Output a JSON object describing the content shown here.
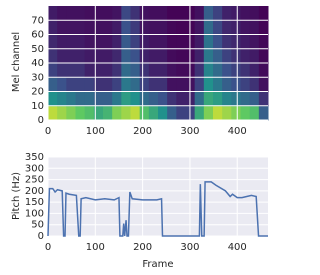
{
  "chart_data": [
    {
      "type": "heatmap",
      "ylabel": "Mel channel",
      "colormap": "viridis",
      "grid": true,
      "xlim": [
        0,
        465
      ],
      "ylim": [
        0,
        80
      ],
      "xticks": [
        0,
        100,
        200,
        300,
        400
      ],
      "yticks": [
        0,
        10,
        20,
        30,
        40,
        50,
        60,
        70
      ],
      "values": [
        [
          0.9,
          0.85,
          0.8,
          0.75,
          0.7,
          0.6,
          0.65,
          0.8,
          0.85,
          0.9,
          0.7,
          0.6,
          0.5,
          0.3,
          0.2,
          0.2,
          0.6,
          0.8,
          0.9,
          0.85,
          0.8,
          0.75,
          0.7,
          0.3
        ],
        [
          0.5,
          0.45,
          0.4,
          0.35,
          0.35,
          0.3,
          0.3,
          0.4,
          0.55,
          0.5,
          0.35,
          0.3,
          0.25,
          0.15,
          0.1,
          0.1,
          0.35,
          0.6,
          0.55,
          0.45,
          0.4,
          0.35,
          0.3,
          0.15
        ],
        [
          0.3,
          0.25,
          0.2,
          0.2,
          0.2,
          0.15,
          0.15,
          0.2,
          0.4,
          0.35,
          0.2,
          0.15,
          0.15,
          0.05,
          0.05,
          0.05,
          0.2,
          0.5,
          0.4,
          0.3,
          0.25,
          0.2,
          0.15,
          0.05
        ],
        [
          0.2,
          0.15,
          0.15,
          0.15,
          0.1,
          0.1,
          0.1,
          0.15,
          0.35,
          0.3,
          0.15,
          0.1,
          0.1,
          0.05,
          0.03,
          0.03,
          0.15,
          0.45,
          0.35,
          0.25,
          0.2,
          0.15,
          0.1,
          0.03
        ],
        [
          0.15,
          0.1,
          0.1,
          0.1,
          0.08,
          0.08,
          0.08,
          0.12,
          0.3,
          0.25,
          0.1,
          0.08,
          0.08,
          0.03,
          0.02,
          0.02,
          0.1,
          0.4,
          0.3,
          0.2,
          0.15,
          0.1,
          0.08,
          0.02
        ],
        [
          0.12,
          0.08,
          0.08,
          0.08,
          0.06,
          0.06,
          0.06,
          0.1,
          0.28,
          0.2,
          0.08,
          0.06,
          0.06,
          0.02,
          0.02,
          0.02,
          0.08,
          0.38,
          0.25,
          0.15,
          0.12,
          0.08,
          0.06,
          0.02
        ],
        [
          0.1,
          0.06,
          0.06,
          0.06,
          0.05,
          0.05,
          0.05,
          0.08,
          0.25,
          0.18,
          0.06,
          0.05,
          0.05,
          0.02,
          0.01,
          0.01,
          0.06,
          0.35,
          0.22,
          0.12,
          0.1,
          0.06,
          0.05,
          0.01
        ],
        [
          0.08,
          0.05,
          0.05,
          0.05,
          0.04,
          0.04,
          0.04,
          0.06,
          0.22,
          0.15,
          0.05,
          0.04,
          0.04,
          0.01,
          0.01,
          0.01,
          0.05,
          0.3,
          0.2,
          0.1,
          0.08,
          0.05,
          0.04,
          0.01
        ]
      ]
    },
    {
      "type": "line",
      "xlabel": "Frame",
      "ylabel": "Pitch (Hz)",
      "color": "#4c72b0",
      "grid": true,
      "xlim": [
        0,
        465
      ],
      "ylim": [
        0,
        350
      ],
      "xticks": [
        0,
        100,
        200,
        300,
        400
      ],
      "yticks": [
        0,
        50,
        100,
        150,
        200,
        250,
        300,
        350
      ],
      "x": [
        0,
        3,
        10,
        15,
        20,
        30,
        33,
        36,
        38,
        45,
        60,
        65,
        68,
        70,
        80,
        100,
        120,
        140,
        150,
        152,
        158,
        160,
        162,
        165,
        167,
        170,
        173,
        178,
        200,
        230,
        240,
        242,
        320,
        322,
        325,
        330,
        332,
        345,
        355,
        375,
        385,
        390,
        400,
        410,
        420,
        430,
        440,
        445,
        465
      ],
      "values": [
        0,
        210,
        210,
        195,
        205,
        200,
        0,
        0,
        190,
        185,
        180,
        0,
        0,
        165,
        170,
        160,
        165,
        160,
        170,
        0,
        0,
        55,
        0,
        70,
        0,
        0,
        195,
        165,
        160,
        160,
        165,
        0,
        0,
        230,
        0,
        0,
        240,
        240,
        225,
        200,
        175,
        185,
        170,
        170,
        175,
        180,
        175,
        0,
        0
      ]
    }
  ]
}
